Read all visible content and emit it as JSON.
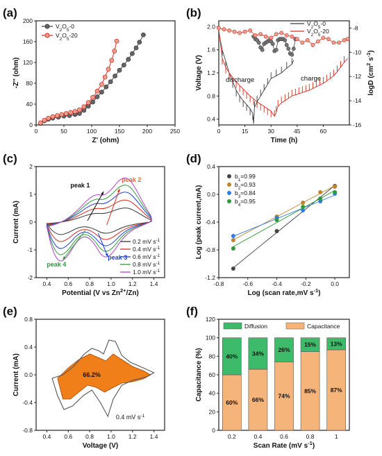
{
  "chart_data": [
    {
      "id": "a",
      "panel_label": "(a)",
      "type": "scatter",
      "xlabel": "Z' (ohm)",
      "ylabel": "-Z'' (ohm)",
      "xlim": [
        0,
        250
      ],
      "ylim": [
        0,
        200
      ],
      "xticks": [
        0,
        50,
        100,
        150,
        200,
        250
      ],
      "yticks": [
        0,
        40,
        80,
        120,
        160,
        200
      ],
      "legend_position": "top-left",
      "series": [
        {
          "name": "V2O5-0",
          "color": "#3a3a3a",
          "points": [
            [
              8,
              3
            ],
            [
              15,
              8
            ],
            [
              22,
              11
            ],
            [
              30,
              13
            ],
            [
              40,
              15
            ],
            [
              50,
              17
            ],
            [
              60,
              18
            ],
            [
              70,
              20
            ],
            [
              78,
              22
            ],
            [
              86,
              28
            ],
            [
              94,
              36
            ],
            [
              102,
              44
            ],
            [
              110,
              54
            ],
            [
              118,
              63
            ],
            [
              126,
              73
            ],
            [
              134,
              83
            ],
            [
              142,
              94
            ],
            [
              150,
              105
            ],
            [
              158,
              115
            ],
            [
              166,
              126
            ],
            [
              173,
              137
            ],
            [
              180,
              148
            ],
            [
              186,
              159
            ],
            [
              193,
              173
            ]
          ]
        },
        {
          "name": "V2O5-20",
          "color": "#d62d20",
          "points": [
            [
              8,
              4
            ],
            [
              15,
              9
            ],
            [
              22,
              13
            ],
            [
              30,
              16
            ],
            [
              38,
              18
            ],
            [
              46,
              20
            ],
            [
              54,
              22
            ],
            [
              62,
              24
            ],
            [
              70,
              26
            ],
            [
              78,
              29
            ],
            [
              86,
              35
            ],
            [
              94,
              43
            ],
            [
              102,
              53
            ],
            [
              110,
              65
            ],
            [
              118,
              78
            ],
            [
              124,
              92
            ],
            [
              130,
              107
            ],
            [
              136,
              124
            ],
            [
              141,
              142
            ],
            [
              145,
              161
            ]
          ]
        }
      ]
    },
    {
      "id": "b",
      "panel_label": "(b)",
      "type": "line",
      "xlabel": "Time (h)",
      "ylabel": "Voltage (V)",
      "y2label": "logD (cm2 s-1)",
      "xlim": [
        0,
        75
      ],
      "ylim": [
        0.3,
        2.1
      ],
      "y2lim": [
        -16,
        -7.4
      ],
      "xticks": [
        0,
        15,
        30,
        45,
        60
      ],
      "yticks": [
        0.4,
        0.8,
        1.2,
        1.6,
        2.0
      ],
      "y2ticks": [
        -16,
        -14,
        -12,
        -10,
        -8
      ],
      "legend_position": "top-right",
      "annotations": [
        "discharge",
        "charge"
      ],
      "series": [
        {
          "name": "V2O5-0",
          "color": "#3a3a3a",
          "voltage_path": [
            [
              0,
              1.9
            ],
            [
              2,
              1.6
            ],
            [
              4,
              1.4
            ],
            [
              6,
              1.2
            ],
            [
              8,
              1.05
            ],
            [
              10,
              0.9
            ],
            [
              12,
              0.8
            ],
            [
              14,
              0.72
            ],
            [
              16,
              0.65
            ],
            [
              18,
              0.58
            ],
            [
              19.5,
              0.5
            ],
            [
              20,
              0.32
            ],
            [
              20.5,
              0.6
            ],
            [
              22,
              0.7
            ],
            [
              24,
              0.8
            ],
            [
              26,
              0.9
            ],
            [
              28,
              1.0
            ],
            [
              30,
              1.1
            ],
            [
              33,
              1.15
            ],
            [
              36,
              1.2
            ],
            [
              39,
              1.28
            ],
            [
              42,
              1.35
            ],
            [
              43,
              1.42
            ]
          ],
          "logD": [
            [
              20,
              -8.7
            ],
            [
              21,
              -8.9
            ],
            [
              22,
              -9.0
            ],
            [
              23,
              -9.2
            ],
            [
              24,
              -9.6
            ],
            [
              25,
              -9.8
            ],
            [
              26,
              -9.3
            ],
            [
              27,
              -9.2
            ],
            [
              28,
              -9.1
            ],
            [
              29,
              -9.0
            ],
            [
              30,
              -9.1
            ],
            [
              31,
              -9.3
            ],
            [
              32,
              -9.9
            ],
            [
              33,
              -9.8
            ],
            [
              34,
              -9.0
            ],
            [
              35,
              -8.9
            ],
            [
              36,
              -8.9
            ],
            [
              37,
              -8.9
            ],
            [
              38,
              -9.0
            ],
            [
              39,
              -9.4
            ],
            [
              40,
              -9.7
            ],
            [
              41,
              -10.1
            ],
            [
              42,
              -10.2
            ],
            [
              43,
              -9.7
            ],
            [
              44,
              -8.9
            ]
          ]
        },
        {
          "name": "V2O5-20",
          "color": "#d62d20",
          "voltage_path": [
            [
              0,
              1.95
            ],
            [
              2,
              1.45
            ],
            [
              4,
              1.3
            ],
            [
              6,
              1.2
            ],
            [
              8,
              1.12
            ],
            [
              10,
              1.05
            ],
            [
              12,
              0.98
            ],
            [
              14,
              0.92
            ],
            [
              16,
              0.86
            ],
            [
              18,
              0.8
            ],
            [
              20,
              0.75
            ],
            [
              22,
              0.7
            ],
            [
              24,
              0.66
            ],
            [
              26,
              0.62
            ],
            [
              28,
              0.58
            ],
            [
              30,
              0.54
            ],
            [
              32,
              0.45
            ],
            [
              33,
              0.52
            ],
            [
              34,
              0.62
            ],
            [
              36,
              0.68
            ],
            [
              38,
              0.72
            ],
            [
              40,
              0.76
            ],
            [
              42,
              0.8
            ],
            [
              44,
              0.82
            ],
            [
              46,
              0.84
            ],
            [
              48,
              0.86
            ],
            [
              50,
              0.88
            ],
            [
              52,
              0.9
            ],
            [
              54,
              0.93
            ],
            [
              56,
              0.96
            ],
            [
              58,
              0.99
            ],
            [
              60,
              1.02
            ],
            [
              62,
              1.06
            ],
            [
              64,
              1.1
            ],
            [
              66,
              1.15
            ],
            [
              68,
              1.22
            ],
            [
              70,
              1.3
            ],
            [
              72,
              1.38
            ],
            [
              74,
              1.45
            ]
          ],
          "logD": [
            [
              0,
              -8.0
            ],
            [
              3,
              -8.1
            ],
            [
              6,
              -8.2
            ],
            [
              9,
              -8.3
            ],
            [
              12,
              -8.4
            ],
            [
              15,
              -8.3
            ],
            [
              18,
              -8.2
            ],
            [
              21,
              -8.6
            ],
            [
              24,
              -8.5
            ],
            [
              27,
              -8.7
            ],
            [
              30,
              -8.8
            ],
            [
              33,
              -8.5
            ],
            [
              36,
              -8.4
            ],
            [
              39,
              -8.6
            ],
            [
              42,
              -8.7
            ],
            [
              45,
              -8.9
            ],
            [
              48,
              -9.2
            ],
            [
              51,
              -9.0
            ],
            [
              54,
              -9.4
            ],
            [
              57,
              -9.1
            ],
            [
              60,
              -8.8
            ],
            [
              63,
              -8.9
            ],
            [
              66,
              -9.2
            ],
            [
              69,
              -9.2
            ],
            [
              72,
              -9.0
            ],
            [
              74,
              -8.9
            ]
          ]
        }
      ]
    },
    {
      "id": "c",
      "panel_label": "(c)",
      "type": "line",
      "xlabel": "Potential (V vs Zn2+/Zn)",
      "ylabel": "Current (mA)",
      "xlim": [
        0.3,
        1.5
      ],
      "ylim": [
        -2,
        2
      ],
      "xticks": [
        0.4,
        0.6,
        0.8,
        1.0,
        1.2,
        1.4
      ],
      "yticks": [
        -2,
        -1,
        0,
        1,
        2
      ],
      "legend_position": "bottom-right",
      "annotations": [
        "peak 1",
        "peak 2",
        "peak 3",
        "peak 4"
      ],
      "series": [
        {
          "name": "0.2 mV s-1",
          "color": "#333333",
          "scale": 0.32
        },
        {
          "name": "0.4 mV s-1",
          "color": "#d62d20",
          "scale": 0.5
        },
        {
          "name": "0.6 mV s-1",
          "color": "#1f3fd6",
          "scale": 0.68
        },
        {
          "name": "0.8 mV s-1",
          "color": "#2f9a3a",
          "scale": 0.84
        },
        {
          "name": "1.0 mV s-1",
          "color": "#b040c8",
          "scale": 1.0
        }
      ]
    },
    {
      "id": "d",
      "panel_label": "(d)",
      "type": "scatter",
      "xlabel": "Log (scan rate,mV s-1)",
      "ylabel": "Log (peak current,mA)",
      "xlim": [
        -0.8,
        0.1
      ],
      "ylim": [
        -1.2,
        0.4
      ],
      "xticks": [
        -0.8,
        -0.6,
        -0.4,
        -0.2,
        0.0
      ],
      "yticks": [
        -1.2,
        -0.8,
        -0.4,
        0.0,
        0.4
      ],
      "legend_position": "top-left",
      "series": [
        {
          "name": "b1=0.99",
          "color": "#444444",
          "x": [
            -0.7,
            -0.4,
            0.0
          ],
          "y": [
            -1.07,
            -0.53,
            0.12
          ]
        },
        {
          "name": "b2=0.93",
          "color": "#c0842c",
          "x": [
            -0.7,
            -0.4,
            -0.22,
            -0.1,
            0.0
          ],
          "y": [
            -0.66,
            -0.32,
            -0.12,
            0.03,
            0.11
          ]
        },
        {
          "name": "b3=0.84",
          "color": "#2f7de8",
          "x": [
            -0.7,
            -0.4,
            -0.22,
            -0.1,
            0.0
          ],
          "y": [
            -0.6,
            -0.34,
            -0.23,
            -0.1,
            0.01
          ]
        },
        {
          "name": "b4=0.95",
          "color": "#2f9a3a",
          "x": [
            -0.7,
            -0.4,
            -0.22,
            -0.1,
            0.0
          ],
          "y": [
            -0.78,
            -0.37,
            -0.18,
            -0.06,
            0.03
          ]
        }
      ]
    },
    {
      "id": "e",
      "panel_label": "(e)",
      "type": "area",
      "xlabel": "Voltage (V)",
      "ylabel": "Current (mA)",
      "xlim": [
        0.3,
        1.5
      ],
      "ylim": [
        -0.8,
        0.8
      ],
      "xticks": [
        0.4,
        0.6,
        0.8,
        1.0,
        1.2,
        1.4
      ],
      "yticks": [
        -0.8,
        -0.4,
        0.0,
        0.4,
        0.8
      ],
      "annotations": [
        "66.2%",
        "0.4 mV s-1"
      ],
      "fill_color": "#f07f1a",
      "outline_color": "#555555"
    },
    {
      "id": "f",
      "panel_label": "(f)",
      "type": "bar",
      "xlabel": "Scan Rate (mV s-1)",
      "ylabel": "Capacitance (%)",
      "ylim": [
        0,
        120
      ],
      "yticks": [
        0,
        20,
        40,
        60,
        80,
        100,
        120
      ],
      "categories": [
        "0.2",
        "0.4",
        "0.6",
        "0.8",
        "1"
      ],
      "legend_position": "top",
      "series": [
        {
          "name": "Capacitance",
          "color": "#f5b47a",
          "values": [
            60,
            66,
            74,
            85,
            87
          ]
        },
        {
          "name": "Diffusion",
          "color": "#3dbb6a",
          "values": [
            40,
            34,
            26,
            15,
            13
          ]
        }
      ]
    }
  ]
}
